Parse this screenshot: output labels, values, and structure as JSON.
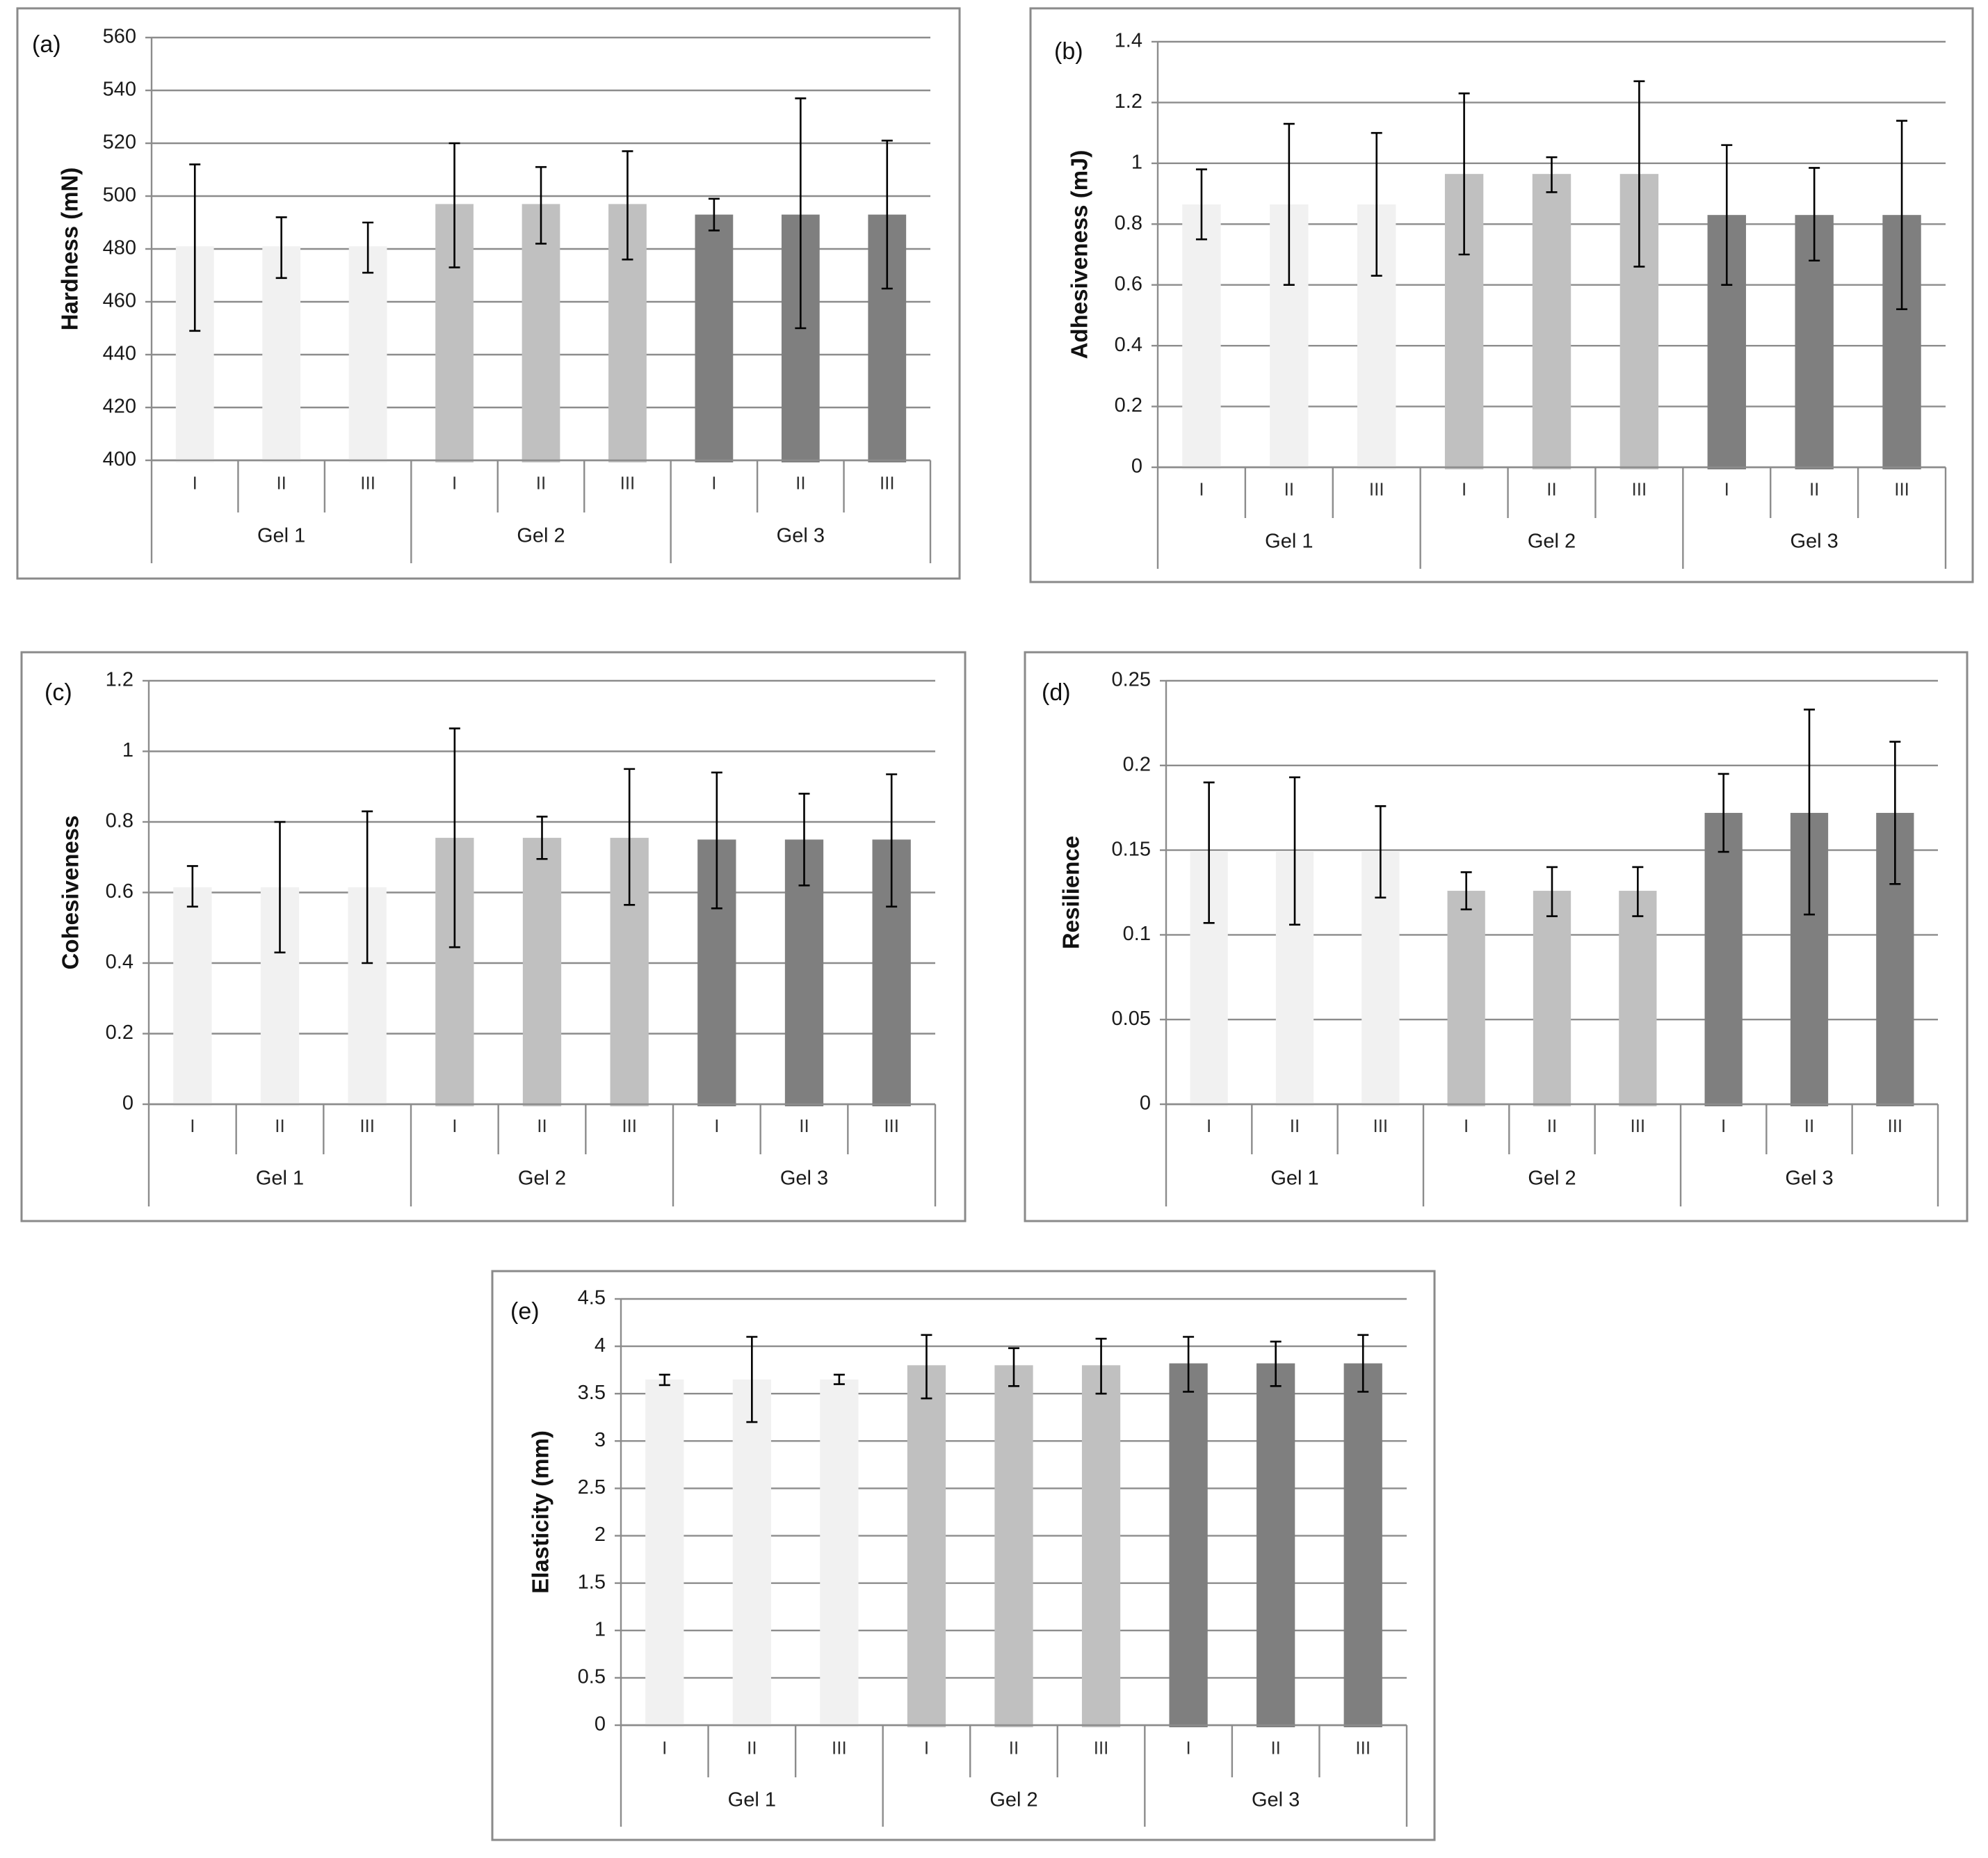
{
  "colors": {
    "Gel 1": "#f1f1f1",
    "Gel 2": "#c0c0c0",
    "Gel 3": "#7f7f7f"
  },
  "chart_data": [
    {
      "type": "bar",
      "panel_label": "(a)",
      "ylabel": "Hardness (mN)",
      "ylim": [
        400,
        560
      ],
      "yticks": [
        "400",
        "420",
        "440",
        "460",
        "480",
        "500",
        "520",
        "540",
        "560"
      ],
      "groups": [
        "Gel 1",
        "Gel 2",
        "Gel 3"
      ],
      "categories": [
        "I",
        "II",
        "III"
      ],
      "values": [
        [
          481,
          481,
          481
        ],
        [
          497,
          497,
          497
        ],
        [
          493,
          493,
          493
        ]
      ],
      "error_low": [
        [
          449,
          469,
          471
        ],
        [
          473,
          482,
          476
        ],
        [
          487,
          450,
          465
        ]
      ],
      "error_high": [
        [
          512,
          492,
          490
        ],
        [
          520,
          511,
          517
        ],
        [
          499,
          537,
          521
        ]
      ],
      "grid": true
    },
    {
      "type": "bar",
      "panel_label": "(b)",
      "ylabel": "Adhesiveness (mJ)",
      "ylim": [
        0,
        1.4
      ],
      "yticks": [
        "0",
        "0.2",
        "0.4",
        "0.6",
        "0.8",
        "1",
        "1.2",
        "1.4"
      ],
      "groups": [
        "Gel 1",
        "Gel 2",
        "Gel 3"
      ],
      "categories": [
        "I",
        "II",
        "III"
      ],
      "values": [
        [
          0.865,
          0.865,
          0.865
        ],
        [
          0.965,
          0.965,
          0.965
        ],
        [
          0.83,
          0.83,
          0.83
        ]
      ],
      "error_low": [
        [
          0.75,
          0.6,
          0.63
        ],
        [
          0.7,
          0.905,
          0.66
        ],
        [
          0.6,
          0.68,
          0.52
        ]
      ],
      "error_high": [
        [
          0.98,
          1.13,
          1.1
        ],
        [
          1.23,
          1.02,
          1.27
        ],
        [
          1.06,
          0.985,
          1.14
        ]
      ],
      "grid": true
    },
    {
      "type": "bar",
      "panel_label": "(c)",
      "ylabel": "Cohesiveness",
      "ylim": [
        0,
        1.2
      ],
      "yticks": [
        "0",
        "0.2",
        "0.4",
        "0.6",
        "0.8",
        "1",
        "1.2"
      ],
      "groups": [
        "Gel 1",
        "Gel 2",
        "Gel 3"
      ],
      "categories": [
        "I",
        "II",
        "III"
      ],
      "values": [
        [
          0.615,
          0.615,
          0.615
        ],
        [
          0.755,
          0.755,
          0.755
        ],
        [
          0.75,
          0.75,
          0.75
        ]
      ],
      "error_low": [
        [
          0.56,
          0.43,
          0.4
        ],
        [
          0.445,
          0.695,
          0.565
        ],
        [
          0.555,
          0.62,
          0.56
        ]
      ],
      "error_high": [
        [
          0.675,
          0.8,
          0.83
        ],
        [
          1.065,
          0.815,
          0.95
        ],
        [
          0.94,
          0.88,
          0.935
        ]
      ],
      "grid": true
    },
    {
      "type": "bar",
      "panel_label": "(d)",
      "ylabel": "Resilience",
      "ylim": [
        0,
        0.25
      ],
      "yticks": [
        "0",
        "0.05",
        "0.1",
        "0.15",
        "0.2",
        "0.25"
      ],
      "groups": [
        "Gel 1",
        "Gel 2",
        "Gel 3"
      ],
      "categories": [
        "I",
        "II",
        "III"
      ],
      "values": [
        [
          0.149,
          0.149,
          0.149
        ],
        [
          0.126,
          0.126,
          0.126
        ],
        [
          0.172,
          0.172,
          0.172
        ]
      ],
      "error_low": [
        [
          0.107,
          0.106,
          0.122
        ],
        [
          0.115,
          0.111,
          0.111
        ],
        [
          0.149,
          0.112,
          0.13
        ]
      ],
      "error_high": [
        [
          0.19,
          0.193,
          0.176
        ],
        [
          0.137,
          0.14,
          0.14
        ],
        [
          0.195,
          0.233,
          0.214
        ]
      ],
      "grid": true
    },
    {
      "type": "bar",
      "panel_label": "(e)",
      "ylabel": "Elasticity (mm)",
      "ylim": [
        0,
        4.5
      ],
      "yticks": [
        "0",
        "0.5",
        "1",
        "1.5",
        "2",
        "2.5",
        "3",
        "3.5",
        "4",
        "4.5"
      ],
      "groups": [
        "Gel 1",
        "Gel 2",
        "Gel 3"
      ],
      "categories": [
        "I",
        "II",
        "III"
      ],
      "values": [
        [
          3.65,
          3.65,
          3.65
        ],
        [
          3.8,
          3.8,
          3.8
        ],
        [
          3.82,
          3.82,
          3.82
        ]
      ],
      "error_low": [
        [
          3.59,
          3.2,
          3.6
        ],
        [
          3.45,
          3.58,
          3.5
        ],
        [
          3.52,
          3.58,
          3.52
        ]
      ],
      "error_high": [
        [
          3.7,
          4.1,
          3.7
        ],
        [
          4.12,
          3.98,
          4.08
        ],
        [
          4.1,
          4.05,
          4.12
        ]
      ],
      "grid": true
    }
  ]
}
